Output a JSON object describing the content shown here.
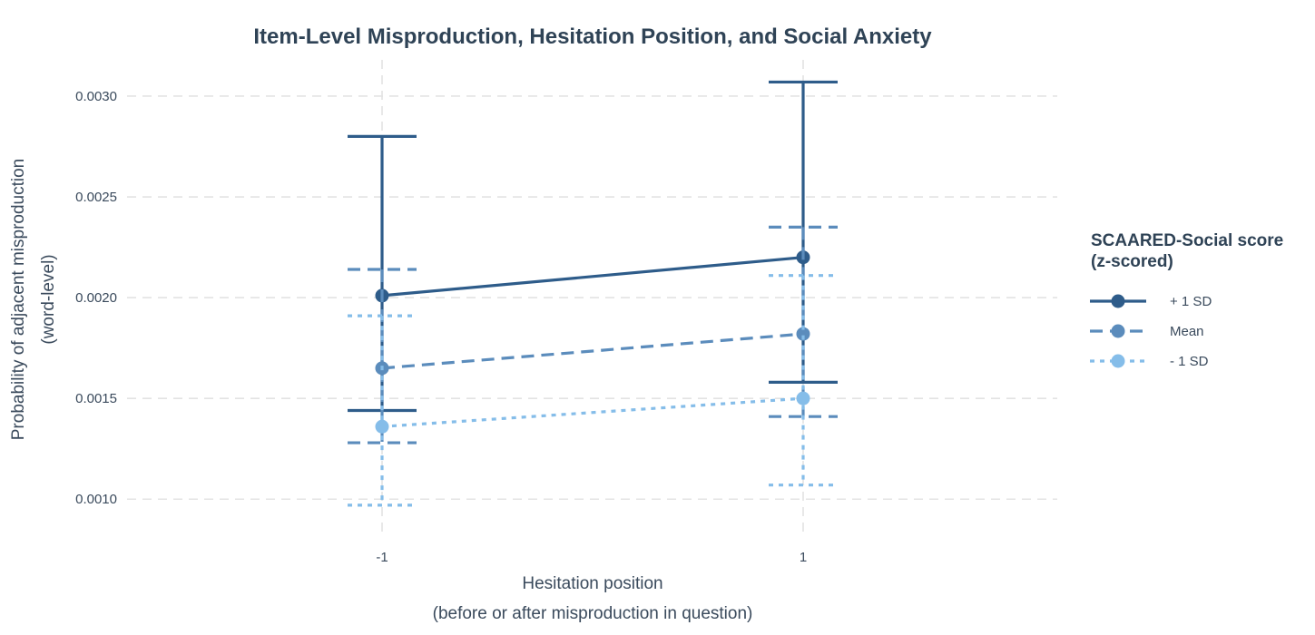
{
  "chart_data": {
    "type": "line",
    "title": "Item-Level Misproduction, Hesitation Position, and Social Anxiety",
    "xlabel": "Hesitation position",
    "xlabel_sub": "(before or after misproduction in question)",
    "ylabel": "Probability of adjacent misproduction",
    "ylabel_sub": "(word-level)",
    "x": [
      -1,
      1
    ],
    "x_tick_labels": [
      "-1",
      "1"
    ],
    "y_ticks": [
      0.001,
      0.0015,
      0.002,
      0.0025,
      0.003
    ],
    "y_tick_labels": [
      "0.0010",
      "0.0015",
      "0.0020",
      "0.0025",
      "0.0030"
    ],
    "ylim": [
      0.00083,
      0.00318
    ],
    "grid": true,
    "legend": {
      "title_line1": "SCAARED-Social score",
      "title_line2": "(z-scored)",
      "placement": "right"
    },
    "series": [
      {
        "name": "+ 1 SD",
        "values": [
          0.00201,
          0.0022
        ],
        "lower": [
          0.00144,
          0.00158
        ],
        "upper": [
          0.0028,
          0.00307
        ],
        "color": "#2e5c8a",
        "dash": "solid"
      },
      {
        "name": "Mean",
        "values": [
          0.00165,
          0.00182
        ],
        "lower": [
          0.00128,
          0.00141
        ],
        "upper": [
          0.00214,
          0.00235
        ],
        "color": "#5b8cbc",
        "dash": "dashed"
      },
      {
        "name": "- 1 SD",
        "values": [
          0.00136,
          0.0015
        ],
        "lower": [
          0.00097,
          0.00107
        ],
        "upper": [
          0.00191,
          0.00211
        ],
        "color": "#85bde9",
        "dash": "dotted"
      }
    ]
  }
}
